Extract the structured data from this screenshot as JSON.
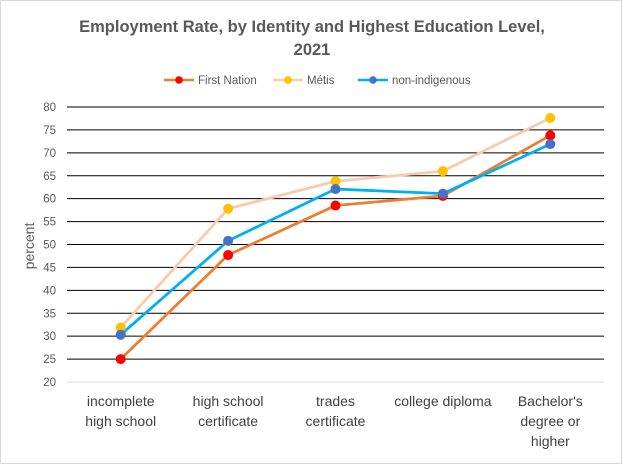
{
  "chart_data": {
    "type": "line",
    "title_lines": [
      "Employment Rate, by Identity and Highest Education Level,",
      "2021"
    ],
    "ylabel": "percent",
    "xlabel": "",
    "ylim": [
      20,
      80
    ],
    "yticks": [
      20,
      25,
      30,
      35,
      40,
      45,
      50,
      55,
      60,
      65,
      70,
      75,
      80
    ],
    "grid": true,
    "legend_position": "top-center",
    "categories": [
      [
        "incomplete",
        "high school"
      ],
      [
        "high school",
        "certificate"
      ],
      [
        "trades",
        "certificate"
      ],
      [
        "college diploma"
      ],
      [
        "Bachelor's",
        "degree or",
        "higher"
      ]
    ],
    "series": [
      {
        "name": "First Nation",
        "line_color": "#ed7d31",
        "marker_color": "#ff0000",
        "values": [
          25.0,
          47.7,
          58.5,
          60.6,
          73.8
        ]
      },
      {
        "name": "Métis",
        "line_color": "#f8cbad",
        "marker_color": "#ffc000",
        "values": [
          31.9,
          57.8,
          63.8,
          66.0,
          77.6
        ]
      },
      {
        "name": "non-indigenous",
        "line_color": "#00b0f0",
        "marker_color": "#4472c4",
        "values": [
          30.3,
          50.8,
          62.1,
          61.1,
          71.9
        ]
      }
    ]
  }
}
